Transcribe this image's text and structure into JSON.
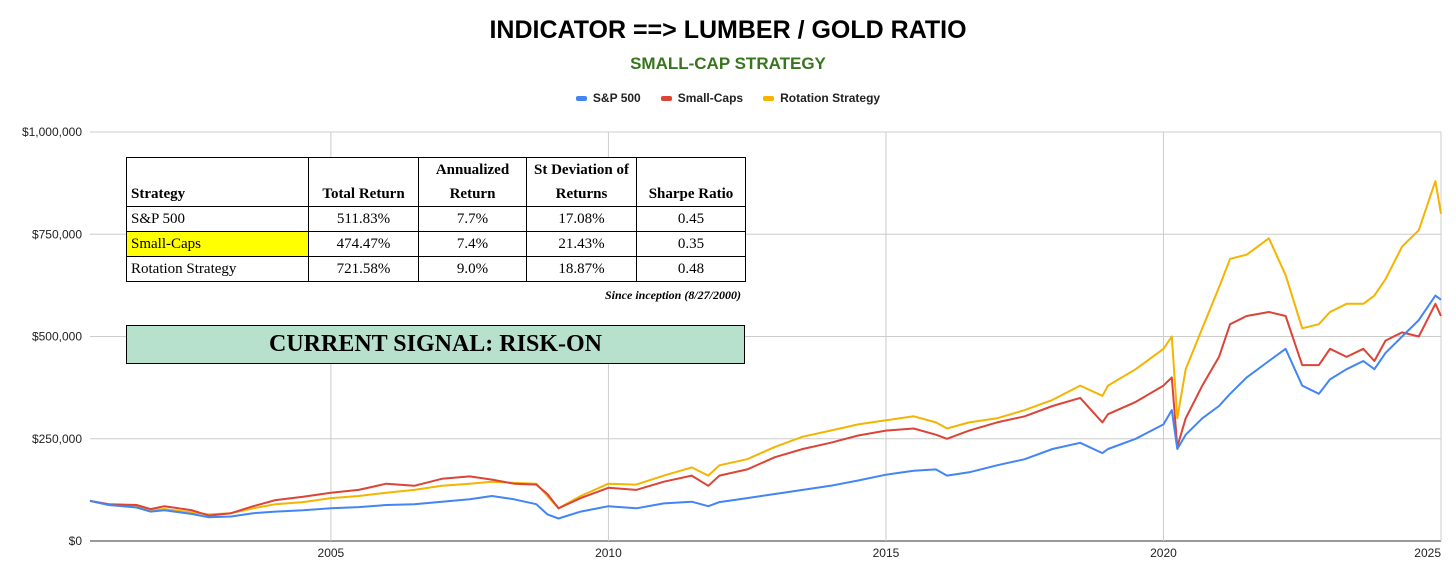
{
  "chart_data": {
    "type": "line",
    "title": "INDICATOR ==> LUMBER / GOLD RATIO",
    "subtitle": "SMALL-CAP STRATEGY",
    "xlabel": "",
    "ylabel": "",
    "xlim": [
      2000.66,
      2025.0
    ],
    "ylim": [
      0,
      1000000
    ],
    "x_ticks": [
      2005,
      2010,
      2015,
      2020,
      2025
    ],
    "y_ticks": [
      0,
      250000,
      500000,
      750000,
      1000000
    ],
    "y_tick_labels": [
      "$0",
      "$250,000",
      "$500,000",
      "$750,000",
      "$1,000,000"
    ],
    "grid": true,
    "legend_position": "top-center",
    "x": [
      2000.66,
      2001.0,
      2001.5,
      2001.75,
      2002.0,
      2002.5,
      2002.8,
      2003.2,
      2003.6,
      2004.0,
      2004.5,
      2005.0,
      2005.5,
      2006.0,
      2006.5,
      2007.0,
      2007.5,
      2007.9,
      2008.3,
      2008.7,
      2008.9,
      2009.1,
      2009.5,
      2010.0,
      2010.5,
      2011.0,
      2011.5,
      2011.8,
      2012.0,
      2012.5,
      2013.0,
      2013.5,
      2014.0,
      2014.5,
      2015.0,
      2015.5,
      2015.9,
      2016.1,
      2016.5,
      2017.0,
      2017.5,
      2018.0,
      2018.5,
      2018.9,
      2019.0,
      2019.5,
      2020.0,
      2020.15,
      2020.25,
      2020.4,
      2020.7,
      2021.0,
      2021.2,
      2021.5,
      2021.9,
      2022.2,
      2022.5,
      2022.8,
      2023.0,
      2023.3,
      2023.6,
      2023.8,
      2024.0,
      2024.3,
      2024.6,
      2024.9,
      2025.0
    ],
    "series": [
      {
        "name": "S&P 500",
        "color": "#4285f4",
        "values": [
          98000,
          88000,
          82000,
          72000,
          75000,
          66000,
          58000,
          60000,
          68000,
          72000,
          75000,
          80000,
          83000,
          88000,
          90000,
          96000,
          102000,
          110000,
          102000,
          90000,
          65000,
          55000,
          72000,
          85000,
          80000,
          92000,
          96000,
          85000,
          95000,
          105000,
          115000,
          125000,
          135000,
          148000,
          162000,
          172000,
          175000,
          160000,
          168000,
          185000,
          200000,
          225000,
          240000,
          215000,
          225000,
          250000,
          285000,
          320000,
          225000,
          260000,
          300000,
          330000,
          360000,
          400000,
          440000,
          470000,
          380000,
          360000,
          395000,
          420000,
          440000,
          420000,
          460000,
          500000,
          540000,
          600000,
          590000
        ]
      },
      {
        "name": "Small-Caps",
        "color": "#db4437",
        "values": [
          98000,
          90000,
          88000,
          78000,
          85000,
          75000,
          62000,
          68000,
          85000,
          100000,
          108000,
          118000,
          125000,
          140000,
          135000,
          152000,
          158000,
          150000,
          140000,
          138000,
          115000,
          80000,
          105000,
          130000,
          125000,
          145000,
          160000,
          135000,
          160000,
          175000,
          205000,
          225000,
          240000,
          258000,
          270000,
          275000,
          260000,
          250000,
          270000,
          290000,
          305000,
          330000,
          350000,
          290000,
          310000,
          340000,
          380000,
          400000,
          230000,
          300000,
          380000,
          450000,
          530000,
          550000,
          560000,
          550000,
          430000,
          430000,
          470000,
          450000,
          470000,
          440000,
          490000,
          510000,
          500000,
          580000,
          550000
        ]
      },
      {
        "name": "Rotation Strategy",
        "color": "#f4b400",
        "values": [
          98000,
          88000,
          84000,
          76000,
          78000,
          70000,
          65000,
          68000,
          80000,
          90000,
          95000,
          105000,
          110000,
          118000,
          125000,
          135000,
          140000,
          145000,
          142000,
          140000,
          110000,
          80000,
          110000,
          140000,
          138000,
          160000,
          180000,
          160000,
          185000,
          200000,
          230000,
          255000,
          270000,
          285000,
          295000,
          305000,
          290000,
          275000,
          290000,
          300000,
          320000,
          345000,
          380000,
          355000,
          380000,
          420000,
          470000,
          500000,
          300000,
          420000,
          520000,
          620000,
          690000,
          700000,
          740000,
          650000,
          520000,
          530000,
          560000,
          580000,
          580000,
          600000,
          640000,
          720000,
          760000,
          880000,
          800000
        ]
      }
    ]
  },
  "legend": [
    {
      "label": "S&P 500",
      "color": "#4285f4"
    },
    {
      "label": "Small-Caps",
      "color": "#db4437"
    },
    {
      "label": "Rotation Strategy",
      "color": "#f4b400"
    }
  ],
  "stats_table": {
    "headers": [
      "Strategy",
      "Total Return",
      "Annualized Return",
      "St Deviation of Returns",
      "Sharpe Ratio"
    ],
    "rows": [
      {
        "cells": [
          "S&P 500",
          "511.83%",
          "7.7%",
          "17.08%",
          "0.45"
        ]
      },
      {
        "cells": [
          "Small-Caps",
          "474.47%",
          "7.4%",
          "21.43%",
          "0.35"
        ]
      },
      {
        "cells": [
          "Rotation Strategy",
          "721.58%",
          "9.0%",
          "18.87%",
          "0.48"
        ]
      }
    ],
    "footnote": "Since inception (8/27/2000)"
  },
  "signal": {
    "text": "CURRENT SIGNAL: RISK-ON"
  }
}
